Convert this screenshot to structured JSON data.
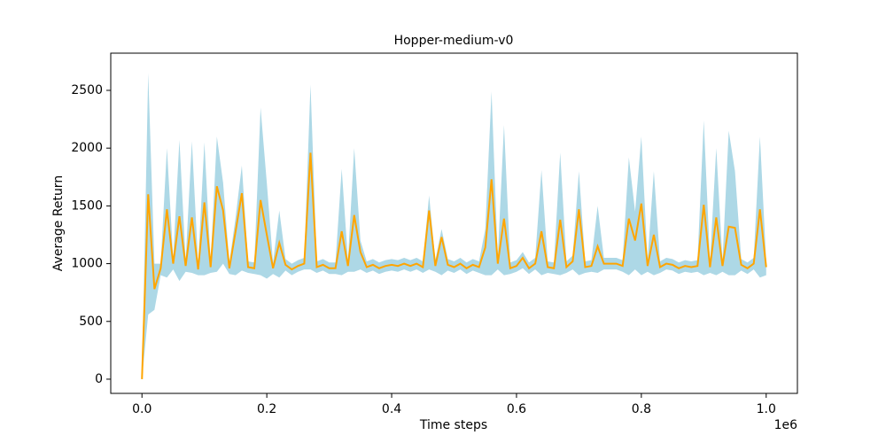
{
  "chart_data": {
    "type": "line",
    "title": "Hopper-medium-v0",
    "x_label": "Time steps",
    "y_label": "Average Return",
    "x_offset_label": "1e6",
    "x": [
      0,
      10000,
      20000,
      30000,
      40000,
      50000,
      60000,
      70000,
      80000,
      90000,
      100000,
      110000,
      120000,
      130000,
      140000,
      150000,
      160000,
      170000,
      180000,
      190000,
      200000,
      210000,
      220000,
      230000,
      240000,
      250000,
      260000,
      270000,
      280000,
      290000,
      300000,
      310000,
      320000,
      330000,
      340000,
      350000,
      360000,
      370000,
      380000,
      390000,
      400000,
      410000,
      420000,
      430000,
      440000,
      450000,
      460000,
      470000,
      480000,
      490000,
      500000,
      510000,
      520000,
      530000,
      540000,
      550000,
      560000,
      570000,
      580000,
      590000,
      600000,
      610000,
      620000,
      630000,
      640000,
      650000,
      660000,
      670000,
      680000,
      690000,
      700000,
      710000,
      720000,
      730000,
      740000,
      750000,
      760000,
      770000,
      780000,
      790000,
      800000,
      810000,
      820000,
      830000,
      840000,
      850000,
      860000,
      870000,
      880000,
      890000,
      900000,
      910000,
      920000,
      930000,
      940000,
      950000,
      960000,
      970000,
      980000,
      990000,
      1000000
    ],
    "series": [
      {
        "color": "#ffa500",
        "values": [
          0,
          1600,
          780,
          960,
          1470,
          1000,
          1410,
          980,
          1400,
          950,
          1530,
          970,
          1670,
          1460,
          960,
          1280,
          1610,
          970,
          960,
          1550,
          1250,
          960,
          1180,
          990,
          950,
          980,
          1000,
          1960,
          970,
          990,
          960,
          960,
          1280,
          980,
          1420,
          1100,
          970,
          990,
          960,
          980,
          990,
          980,
          1000,
          980,
          1000,
          970,
          1460,
          980,
          1230,
          990,
          970,
          1000,
          960,
          990,
          970,
          1140,
          1730,
          1000,
          1390,
          960,
          980,
          1050,
          960,
          1000,
          1280,
          970,
          960,
          1380,
          970,
          1020,
          1470,
          970,
          980,
          1150,
          1000,
          1000,
          1000,
          980,
          1390,
          1200,
          1520,
          980,
          1250,
          970,
          1000,
          990,
          960,
          980,
          970,
          980,
          1510,
          970,
          1400,
          980,
          1320,
          1310,
          990,
          960,
          1000,
          1470,
          970
        ]
      }
    ],
    "band": {
      "color": "#add8e6",
      "upper": [
        0,
        2650,
        1000,
        1000,
        2000,
        1050,
        2070,
        1030,
        2060,
        1000,
        2050,
        1020,
        2100,
        1700,
        1010,
        1400,
        1850,
        1020,
        1010,
        2350,
        1700,
        1010,
        1460,
        1040,
        1000,
        1030,
        1050,
        2550,
        1020,
        1040,
        1010,
        1010,
        1820,
        1030,
        2000,
        1200,
        1020,
        1040,
        1010,
        1030,
        1040,
        1030,
        1050,
        1030,
        1050,
        1020,
        1590,
        1030,
        1300,
        1040,
        1020,
        1050,
        1010,
        1040,
        1020,
        1300,
        2490,
        1050,
        2200,
        1010,
        1030,
        1100,
        1010,
        1050,
        1810,
        1020,
        1010,
        1960,
        1020,
        1070,
        1800,
        1020,
        1030,
        1500,
        1050,
        1050,
        1050,
        1030,
        1920,
        1450,
        2100,
        1030,
        1800,
        1020,
        1050,
        1040,
        1010,
        1030,
        1020,
        1030,
        2240,
        1020,
        2000,
        1030,
        2150,
        1800,
        1040,
        1010,
        1050,
        2100,
        1020
      ],
      "lower": [
        0,
        560,
        600,
        900,
        880,
        950,
        850,
        930,
        920,
        900,
        900,
        920,
        930,
        1000,
        910,
        900,
        940,
        920,
        910,
        900,
        870,
        910,
        880,
        940,
        900,
        930,
        950,
        950,
        920,
        940,
        910,
        910,
        900,
        930,
        930,
        950,
        920,
        940,
        910,
        930,
        940,
        930,
        950,
        930,
        950,
        920,
        950,
        930,
        900,
        940,
        920,
        950,
        910,
        940,
        920,
        900,
        900,
        950,
        900,
        910,
        930,
        960,
        910,
        950,
        900,
        920,
        910,
        900,
        920,
        950,
        900,
        920,
        930,
        920,
        950,
        950,
        950,
        930,
        900,
        950,
        900,
        930,
        900,
        920,
        950,
        940,
        910,
        930,
        920,
        930,
        900,
        920,
        900,
        930,
        900,
        900,
        940,
        910,
        950,
        880,
        900
      ]
    },
    "xlim": [
      -50000,
      1050000
    ],
    "ylim": [
      -123,
      2822
    ],
    "xticks": [
      {
        "value": 0,
        "label": "0.0"
      },
      {
        "value": 200000,
        "label": "0.2"
      },
      {
        "value": 400000,
        "label": "0.4"
      },
      {
        "value": 600000,
        "label": "0.6"
      },
      {
        "value": 800000,
        "label": "0.8"
      },
      {
        "value": 1000000,
        "label": "1.0"
      }
    ],
    "yticks": [
      0,
      500,
      1000,
      1500,
      2000,
      2500
    ],
    "grid": false
  }
}
